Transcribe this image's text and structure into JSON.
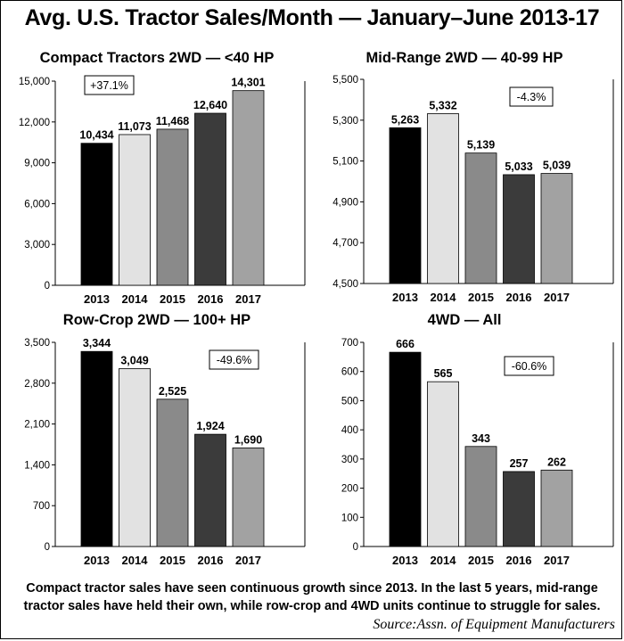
{
  "title": "Avg. U.S. Tractor Sales/Month — January–June 2013-17",
  "caption": "Compact tractor sales have seen continuous growth since 2013. In the last 5 years, mid-range tractor sales have held their own, while row-crop and 4WD units continue to struggle for sales.",
  "source": "Source:Assn. of Equipment Manufacturers",
  "colors": [
    "#000000",
    "#e2e2e2",
    "#8a8a8a",
    "#3b3b3b",
    "#a2a2a2"
  ],
  "chart_data": [
    {
      "type": "bar",
      "title": "Compact Tractors 2WD — <40 HP",
      "categories": [
        "2013",
        "2014",
        "2015",
        "2016",
        "2017"
      ],
      "values": [
        10434,
        11073,
        11468,
        12640,
        14301
      ],
      "value_labels": [
        "10,434",
        "11,073",
        "11,468",
        "12,640",
        "14,301"
      ],
      "ylim": [
        0,
        15000
      ],
      "yticks": [
        0,
        3000,
        6000,
        9000,
        12000,
        15000
      ],
      "ytick_labels": [
        "0",
        "3,000",
        "6,000",
        "9,000",
        "12,000",
        "15,000"
      ],
      "annotation": "+37.1%",
      "xlabel": "",
      "ylabel": ""
    },
    {
      "type": "bar",
      "title": "Mid-Range 2WD — 40-99 HP",
      "categories": [
        "2013",
        "2014",
        "2015",
        "2016",
        "2017"
      ],
      "values": [
        5263,
        5332,
        5139,
        5033,
        5039
      ],
      "value_labels": [
        "5,263",
        "5,332",
        "5,139",
        "5,033",
        "5,039"
      ],
      "ylim": [
        4500,
        5500
      ],
      "yticks": [
        4500,
        4700,
        4900,
        5100,
        5300,
        5500
      ],
      "ytick_labels": [
        "4,500",
        "4,700",
        "4,900",
        "5,100",
        "5,300",
        "5,500"
      ],
      "annotation": "-4.3%",
      "xlabel": "",
      "ylabel": ""
    },
    {
      "type": "bar",
      "title": "Row-Crop 2WD — 100+ HP",
      "categories": [
        "2013",
        "2014",
        "2015",
        "2016",
        "2017"
      ],
      "values": [
        3344,
        3049,
        2525,
        1924,
        1690
      ],
      "value_labels": [
        "3,344",
        "3,049",
        "2,525",
        "1,924",
        "1,690"
      ],
      "ylim": [
        0,
        3500
      ],
      "yticks": [
        0,
        700,
        1400,
        2100,
        2800,
        3500
      ],
      "ytick_labels": [
        "0",
        "700",
        "1,400",
        "2,100",
        "2,800",
        "3,500"
      ],
      "annotation": "-49.6%",
      "xlabel": "",
      "ylabel": ""
    },
    {
      "type": "bar",
      "title": "4WD — All",
      "categories": [
        "2013",
        "2014",
        "2015",
        "2016",
        "2017"
      ],
      "values": [
        666,
        565,
        343,
        257,
        262
      ],
      "value_labels": [
        "666",
        "565",
        "343",
        "257",
        "262"
      ],
      "ylim": [
        0,
        700
      ],
      "yticks": [
        0,
        100,
        200,
        300,
        400,
        500,
        600,
        700
      ],
      "ytick_labels": [
        "0",
        "100",
        "200",
        "300",
        "400",
        "500",
        "600",
        "700"
      ],
      "annotation": "-60.6%",
      "xlabel": "",
      "ylabel": ""
    }
  ]
}
